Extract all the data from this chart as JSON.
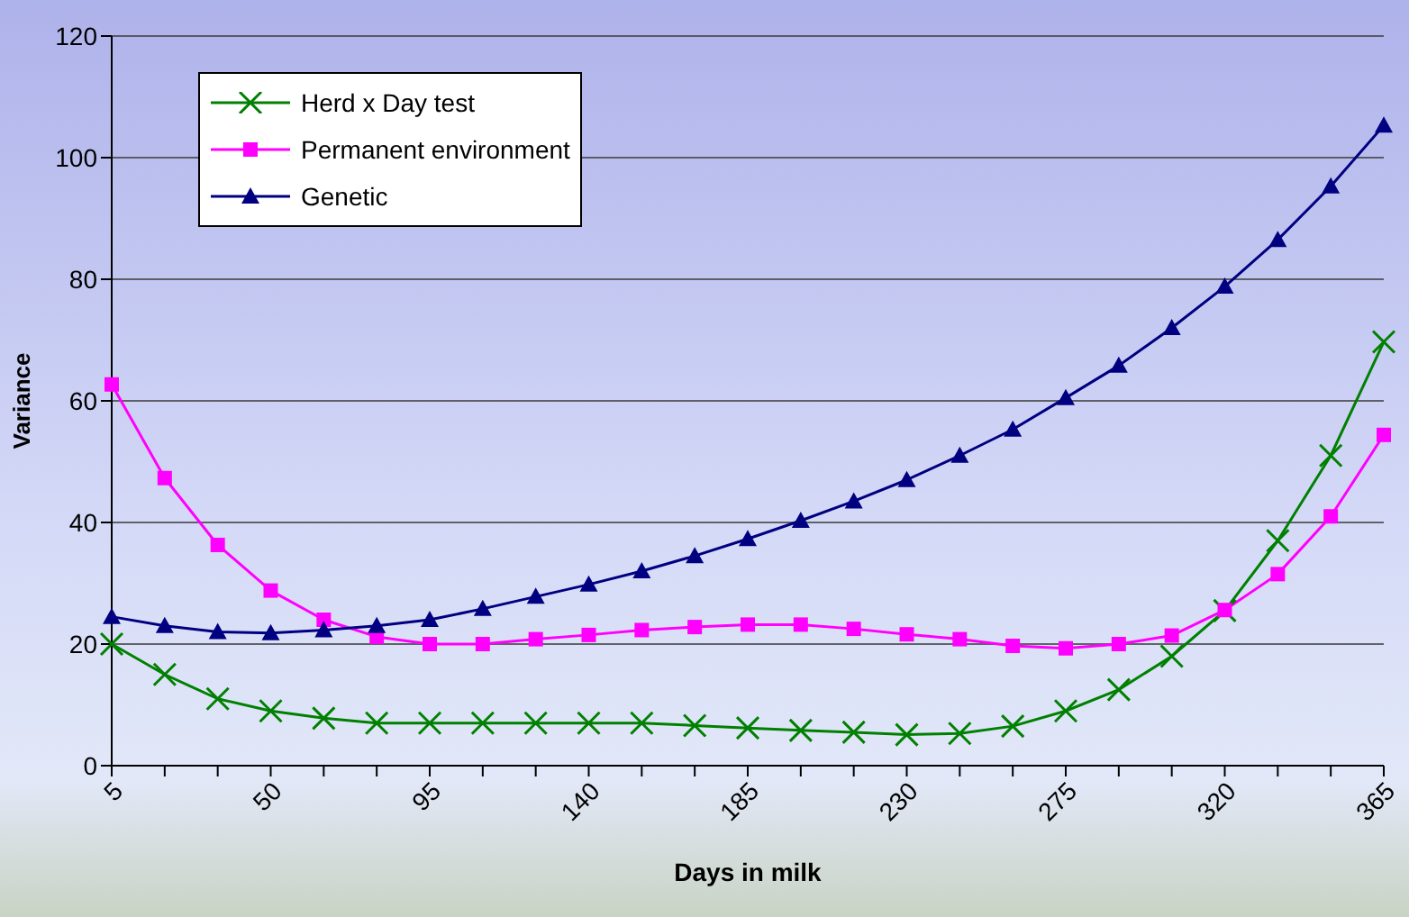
{
  "chart_data": {
    "type": "line",
    "xlabel": "Days in milk",
    "ylabel": "Variance",
    "categories": [
      "5",
      null,
      null,
      "50",
      null,
      null,
      "95",
      null,
      null,
      "140",
      null,
      null,
      "185",
      null,
      null,
      "230",
      null,
      null,
      "275",
      null,
      null,
      "320",
      null,
      null,
      "365"
    ],
    "series": [
      {
        "name": "Herd x Day test",
        "color": "#008000",
        "marker": "cross",
        "values": [
          20,
          15,
          11,
          9,
          7.8,
          7,
          7,
          7,
          7,
          7,
          7,
          6.6,
          6.2,
          5.8,
          5.5,
          5.1,
          5.3,
          6.5,
          9,
          12.5,
          18,
          25.5,
          37,
          51,
          69.7
        ]
      },
      {
        "name": "Permanent environment",
        "color": "#ff00ff",
        "marker": "square",
        "values": [
          62.7,
          47.3,
          36.3,
          28.8,
          24,
          21.2,
          20,
          20,
          20.8,
          21.5,
          22.3,
          22.8,
          23.2,
          23.2,
          22.5,
          21.6,
          20.8,
          19.7,
          19.3,
          20,
          21.4,
          25.6,
          31.5,
          41,
          54.4
        ]
      },
      {
        "name": "Genetic",
        "color": "#000080",
        "marker": "triangle",
        "values": [
          24.5,
          23,
          22,
          21.8,
          22.3,
          23,
          24,
          25.8,
          27.8,
          29.8,
          32,
          34.5,
          37.3,
          40.3,
          43.5,
          47,
          51,
          55.3,
          60.5,
          65.8,
          72,
          78.8,
          86.5,
          95.3,
          105.3
        ]
      }
    ],
    "ylim": [
      0,
      120
    ],
    "yticks": [
      0,
      20,
      40,
      60,
      80,
      100,
      120
    ],
    "grid": "y",
    "legend": "top left",
    "line_style": "solid"
  }
}
